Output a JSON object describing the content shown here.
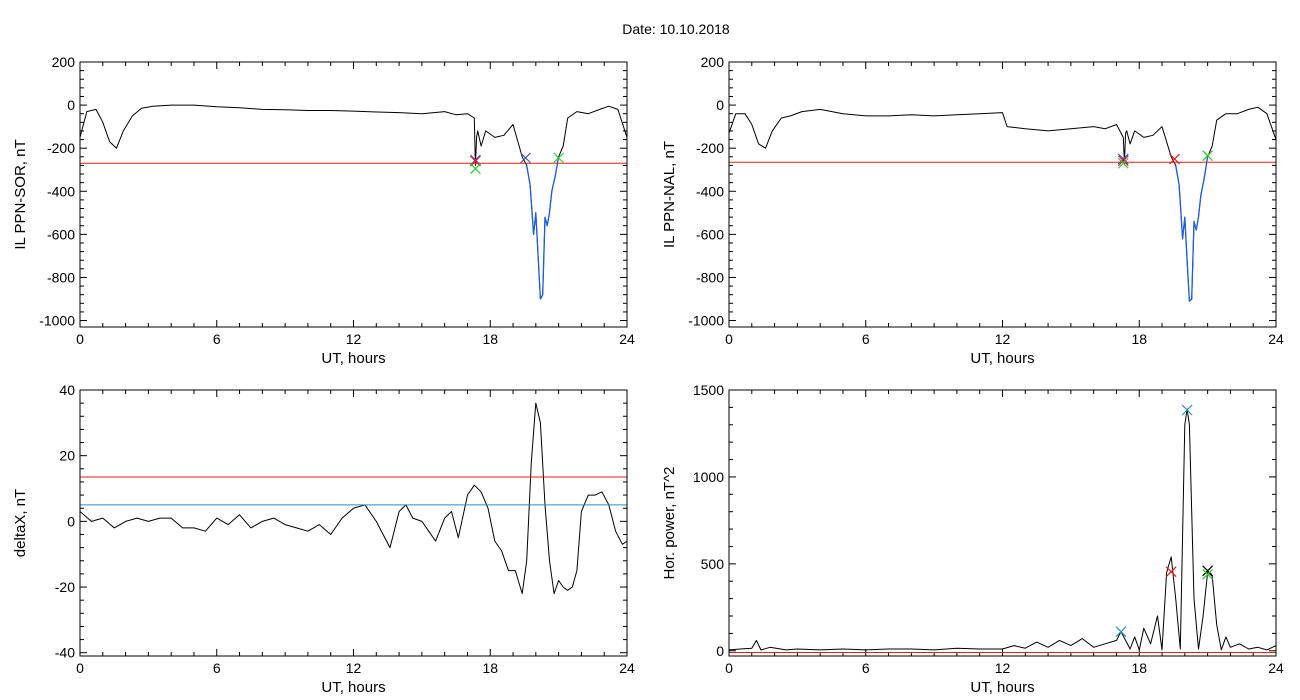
{
  "figure": {
    "title": "Date:  10.10.2018"
  },
  "colors": {
    "curve": "#000000",
    "threshold": "#e0201a",
    "highlight": "#1f5fd6",
    "level": "#2a8fb5",
    "mark_red": "#e0201a",
    "mark_green": "#32c832",
    "mark_blue": "#3a50d8",
    "mark_cyan": "#2a8fb5",
    "mark_black": "#000000"
  },
  "chart_data": [
    {
      "id": "ppn-sor",
      "type": "line",
      "xlabel": "UT, hours",
      "ylabel": "IL PPN-SOR, nT",
      "xlim": [
        0,
        24
      ],
      "ylim": [
        -1030,
        200
      ],
      "xticks": [
        0,
        6,
        12,
        18,
        24
      ],
      "yticks": [
        -1000,
        -800,
        -600,
        -400,
        -200,
        0,
        200
      ],
      "grid": false,
      "series": [
        {
          "role": "index",
          "color": "curve",
          "x": [
            0,
            0.3,
            0.7,
            1.0,
            1.3,
            1.6,
            1.9,
            2.3,
            2.7,
            3.2,
            4,
            5,
            6,
            7,
            8,
            9,
            10,
            11,
            12,
            13,
            14,
            15,
            16,
            16.5,
            17.0,
            17.3,
            17.35,
            17.4,
            17.45,
            17.6,
            17.8,
            18.2,
            18.6,
            19.0,
            19.4,
            19.6,
            19.75,
            19.9,
            20.0,
            20.1,
            20.2,
            20.3,
            20.4,
            20.5,
            20.6,
            20.7,
            20.85,
            21.0,
            21.2,
            21.4,
            21.8,
            22.3,
            22.8,
            23.2,
            23.6,
            24
          ],
          "y": [
            -150,
            -30,
            -20,
            -80,
            -170,
            -200,
            -120,
            -50,
            -15,
            -5,
            0,
            0,
            -8,
            -12,
            -20,
            -22,
            -25,
            -25,
            -28,
            -32,
            -35,
            -40,
            -30,
            -45,
            -40,
            -60,
            -280,
            -150,
            -120,
            -190,
            -120,
            -150,
            -140,
            -90,
            -240,
            -280,
            -370,
            -600,
            -500,
            -700,
            -900,
            -880,
            -520,
            -560,
            -500,
            -400,
            -330,
            -240,
            -190,
            -60,
            -30,
            -40,
            -20,
            -5,
            -20,
            -150
          ]
        },
        {
          "role": "active-interval",
          "color": "highlight",
          "x": [
            19.6,
            19.75,
            19.9,
            20.0,
            20.1,
            20.2,
            20.3,
            20.4,
            20.5,
            20.6,
            20.7,
            20.85,
            21.0
          ],
          "y": [
            -280,
            -370,
            -600,
            -500,
            -700,
            -900,
            -880,
            -520,
            -560,
            -500,
            -400,
            -330,
            -240
          ]
        },
        {
          "role": "threshold",
          "color": "threshold",
          "x": [
            0,
            24
          ],
          "y": [
            -270,
            -270
          ]
        }
      ],
      "markers": [
        {
          "x": 17.35,
          "y": -255,
          "color": "mark_blue"
        },
        {
          "x": 17.35,
          "y": -260,
          "color": "mark_red"
        },
        {
          "x": 17.35,
          "y": -295,
          "color": "mark_green"
        },
        {
          "x": 19.55,
          "y": -245,
          "color": "mark_blue"
        },
        {
          "x": 21.0,
          "y": -245,
          "color": "mark_green"
        }
      ]
    },
    {
      "id": "ppn-nal",
      "type": "line",
      "xlabel": "UT, hours",
      "ylabel": "IL PPN-NAL, nT",
      "xlim": [
        0,
        24
      ],
      "ylim": [
        -1030,
        200
      ],
      "xticks": [
        0,
        6,
        12,
        18,
        24
      ],
      "yticks": [
        -1000,
        -800,
        -600,
        -400,
        -200,
        0,
        200
      ],
      "grid": false,
      "series": [
        {
          "role": "index",
          "color": "curve",
          "x": [
            0,
            0.3,
            0.7,
            1.0,
            1.3,
            1.6,
            1.9,
            2.3,
            2.7,
            3.2,
            4,
            5,
            6,
            7,
            8,
            9,
            10,
            11,
            12,
            12.2,
            13,
            14,
            15,
            16,
            16.5,
            17.0,
            17.3,
            17.35,
            17.4,
            17.45,
            17.6,
            17.8,
            18.2,
            18.6,
            19.0,
            19.4,
            19.6,
            19.75,
            19.9,
            20.0,
            20.1,
            20.2,
            20.3,
            20.4,
            20.5,
            20.6,
            20.7,
            20.85,
            21.0,
            21.2,
            21.4,
            21.8,
            22.3,
            22.8,
            23.2,
            23.6,
            24
          ],
          "y": [
            -130,
            -40,
            -40,
            -90,
            -180,
            -200,
            -120,
            -60,
            -50,
            -30,
            -20,
            -40,
            -50,
            -50,
            -45,
            -50,
            -45,
            -40,
            -35,
            -100,
            -110,
            -120,
            -110,
            -100,
            -110,
            -90,
            -150,
            -270,
            -130,
            -120,
            -180,
            -120,
            -150,
            -140,
            -100,
            -240,
            -280,
            -370,
            -620,
            -520,
            -720,
            -910,
            -900,
            -540,
            -580,
            -520,
            -420,
            -340,
            -240,
            -190,
            -70,
            -40,
            -40,
            -20,
            -10,
            -40,
            -160
          ]
        },
        {
          "role": "active-interval",
          "color": "highlight",
          "x": [
            19.6,
            19.75,
            19.9,
            20.0,
            20.1,
            20.2,
            20.3,
            20.4,
            20.5,
            20.6,
            20.7,
            20.85,
            21.0
          ],
          "y": [
            -280,
            -370,
            -620,
            -520,
            -720,
            -910,
            -900,
            -540,
            -580,
            -520,
            -420,
            -340,
            -240
          ]
        },
        {
          "role": "threshold",
          "color": "threshold",
          "x": [
            0,
            24
          ],
          "y": [
            -265,
            -265
          ]
        }
      ],
      "markers": [
        {
          "x": 17.3,
          "y": -250,
          "color": "mark_blue"
        },
        {
          "x": 17.3,
          "y": -258,
          "color": "mark_red"
        },
        {
          "x": 17.3,
          "y": -270,
          "color": "mark_green"
        },
        {
          "x": 19.55,
          "y": -250,
          "color": "mark_red"
        },
        {
          "x": 21.0,
          "y": -235,
          "color": "mark_green"
        }
      ]
    },
    {
      "id": "deltax",
      "type": "line",
      "xlabel": "UT, hours",
      "ylabel": "deltaX, nT",
      "xlim": [
        0,
        24
      ],
      "ylim": [
        -41,
        40
      ],
      "xticks": [
        0,
        6,
        12,
        18,
        24
      ],
      "yticks": [
        -40,
        -20,
        0,
        20,
        40
      ],
      "grid": false,
      "series": [
        {
          "role": "index",
          "color": "curve",
          "x": [
            0,
            0.5,
            1.0,
            1.5,
            2.0,
            2.5,
            3.0,
            3.5,
            4.0,
            4.5,
            5.0,
            5.5,
            6.0,
            6.5,
            7.0,
            7.5,
            8.0,
            8.5,
            9.0,
            9.5,
            10.0,
            10.5,
            11.0,
            11.5,
            12.0,
            12.5,
            13.0,
            13.3,
            13.6,
            14.0,
            14.3,
            14.6,
            15.0,
            15.3,
            15.6,
            16.0,
            16.3,
            16.6,
            17.0,
            17.3,
            17.6,
            17.9,
            18.2,
            18.5,
            18.8,
            19.1,
            19.4,
            19.6,
            19.8,
            20.0,
            20.2,
            20.4,
            20.6,
            20.8,
            21.0,
            21.2,
            21.4,
            21.6,
            21.8,
            22.0,
            22.3,
            22.6,
            22.9,
            23.2,
            23.5,
            23.8,
            24
          ],
          "y": [
            3,
            0,
            1,
            -2,
            0,
            1,
            0,
            1,
            1,
            -2,
            -2,
            -3,
            1,
            -1,
            2,
            -2,
            0,
            1,
            -1,
            -2,
            -3,
            -1,
            -4,
            1,
            4,
            5,
            0,
            -4,
            -8,
            3,
            5,
            1,
            0,
            -3,
            -6,
            1,
            3,
            -5,
            8,
            11,
            9,
            4,
            -6,
            -9,
            -15,
            -15,
            -22,
            -12,
            18,
            36,
            30,
            5,
            -12,
            -22,
            -18,
            -20,
            -21,
            -20,
            -15,
            3,
            8,
            8,
            9,
            5,
            -3,
            -7,
            -6
          ]
        },
        {
          "role": "threshold",
          "color": "threshold",
          "x": [
            0,
            24
          ],
          "y": [
            13.5,
            13.5
          ]
        },
        {
          "role": "level",
          "color": "level",
          "x": [
            0,
            24
          ],
          "y": [
            5,
            5
          ]
        }
      ],
      "markers": []
    },
    {
      "id": "hor-power",
      "type": "line",
      "xlabel": "UT, hours",
      "ylabel": "Hor. power, nT^2",
      "xlim": [
        0,
        24
      ],
      "ylim": [
        -30,
        1500
      ],
      "xticks": [
        0,
        6,
        12,
        18,
        24
      ],
      "yticks": [
        0,
        500,
        1000,
        1500
      ],
      "grid": false,
      "series": [
        {
          "role": "index",
          "color": "curve",
          "x": [
            0,
            0.5,
            1.0,
            1.2,
            1.4,
            1.8,
            2.5,
            3,
            4,
            5,
            6,
            7,
            8,
            9,
            10,
            11,
            12,
            12.5,
            13,
            13.5,
            14,
            14.5,
            15,
            15.5,
            16,
            16.5,
            17.0,
            17.2,
            17.4,
            17.6,
            17.8,
            18.0,
            18.2,
            18.5,
            18.8,
            19.0,
            19.2,
            19.4,
            19.6,
            19.8,
            20.0,
            20.1,
            20.2,
            20.3,
            20.4,
            20.6,
            20.8,
            21.0,
            21.2,
            21.4,
            21.6,
            21.8,
            22.0,
            22.4,
            22.8,
            23.2,
            23.6,
            24
          ],
          "y": [
            5,
            10,
            15,
            60,
            5,
            20,
            5,
            10,
            5,
            10,
            5,
            10,
            10,
            5,
            15,
            10,
            10,
            30,
            15,
            50,
            20,
            60,
            30,
            70,
            20,
            40,
            60,
            110,
            60,
            10,
            80,
            5,
            130,
            40,
            200,
            5,
            450,
            540,
            300,
            10,
            1300,
            1390,
            1300,
            800,
            300,
            10,
            200,
            450,
            430,
            150,
            5,
            80,
            20,
            40,
            10,
            20,
            5,
            30
          ]
        },
        {
          "role": "threshold",
          "color": "threshold",
          "x": [
            0,
            24
          ],
          "y": [
            -10,
            -10
          ]
        }
      ],
      "markers": [
        {
          "x": 17.2,
          "y": 110,
          "color": "mark_cyan"
        },
        {
          "x": 19.4,
          "y": 455,
          "color": "mark_red"
        },
        {
          "x": 20.1,
          "y": 1385,
          "color": "mark_cyan"
        },
        {
          "x": 21.0,
          "y": 460,
          "color": "mark_black"
        },
        {
          "x": 21.0,
          "y": 440,
          "color": "mark_green"
        }
      ]
    }
  ]
}
